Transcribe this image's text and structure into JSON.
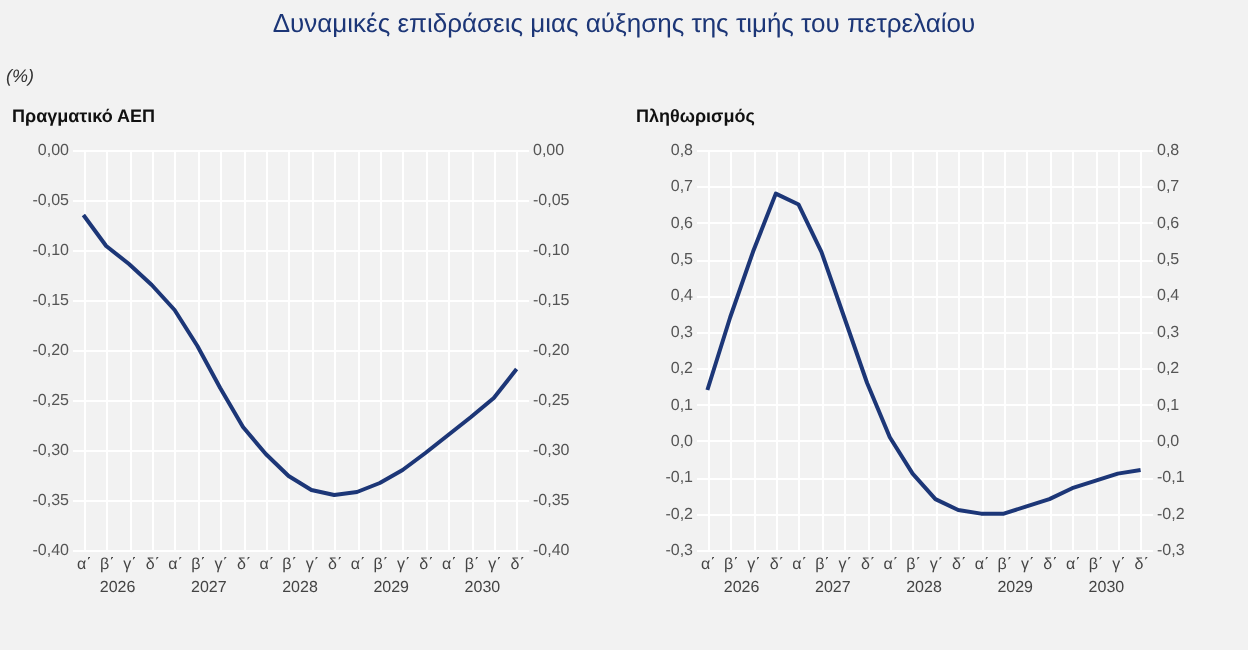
{
  "chart_data": [
    {
      "type": "line",
      "title": "Πραγματικό ΑΕΠ",
      "ylabel": "(%)",
      "annotations": [
        "Δυναμικές επιδράσεις μιας αύξησης της τιμής του πετρελαίου",
        "2026",
        "2027",
        "2028",
        "2029",
        "2030"
      ],
      "categories": [
        "α΄",
        "β΄",
        "γ΄",
        "δ΄",
        "α΄",
        "β΄",
        "γ΄",
        "δ΄",
        "α΄",
        "β΄",
        "γ΄",
        "δ΄",
        "α΄",
        "β΄",
        "γ΄",
        "δ΄",
        "α΄",
        "β΄",
        "γ΄",
        "δ΄"
      ],
      "series": [
        {
          "color": "#1c3677",
          "values": [
            -0.065,
            -0.096,
            -0.114,
            -0.135,
            -0.16,
            -0.196,
            -0.238,
            -0.277,
            -0.304,
            -0.326,
            -0.34,
            -0.345,
            -0.342,
            -0.333,
            -0.32,
            -0.303,
            -0.285,
            -0.267,
            -0.248,
            -0.219
          ]
        }
      ],
      "ylim": [
        -0.4,
        0
      ],
      "yticks": [
        {
          "value": -0.4,
          "label": "-0,40"
        },
        {
          "value": -0.35,
          "label": "-0,35"
        },
        {
          "value": -0.3,
          "label": "-0,30"
        },
        {
          "value": -0.25,
          "label": "-0,25"
        },
        {
          "value": -0.2,
          "label": "-0,20"
        },
        {
          "value": -0.15,
          "label": "-0,15"
        },
        {
          "value": -0.1,
          "label": "-0,10"
        },
        {
          "value": -0.05,
          "label": "-0,05"
        },
        {
          "value": 0,
          "label": "0,00"
        }
      ],
      "y2lim": [
        -0.4,
        0
      ],
      "y2ticks": [
        {
          "value": -0.4,
          "label": "-0,40"
        },
        {
          "value": -0.35,
          "label": "-0,35"
        },
        {
          "value": -0.3,
          "label": "-0,30"
        },
        {
          "value": -0.25,
          "label": "-0,25"
        },
        {
          "value": -0.2,
          "label": "-0,20"
        },
        {
          "value": -0.15,
          "label": "-0,15"
        },
        {
          "value": -0.1,
          "label": "-0,10"
        },
        {
          "value": -0.05,
          "label": "-0,05"
        },
        {
          "value": 0,
          "label": "0,00"
        }
      ],
      "grid": true,
      "legend": false,
      "marker": "none",
      "line_style": "solid"
    },
    {
      "type": "line",
      "title": "Πληθωρισμός",
      "annotations": [
        "2026",
        "2027",
        "2028",
        "2029",
        "2030"
      ],
      "categories": [
        "α΄",
        "β΄",
        "γ΄",
        "δ΄",
        "α΄",
        "β΄",
        "γ΄",
        "δ΄",
        "α΄",
        "β΄",
        "γ΄",
        "δ΄",
        "α΄",
        "β΄",
        "γ΄",
        "δ΄",
        "α΄",
        "β΄",
        "γ΄",
        "δ΄"
      ],
      "series": [
        {
          "color": "#1c3677",
          "values": [
            0.14,
            0.34,
            0.52,
            0.68,
            0.65,
            0.52,
            0.34,
            0.16,
            0.01,
            -0.09,
            -0.16,
            -0.19,
            -0.2,
            -0.2,
            -0.18,
            -0.16,
            -0.13,
            -0.11,
            -0.09,
            -0.08
          ]
        }
      ],
      "ylim": [
        -0.3,
        0.8
      ],
      "yticks": [
        {
          "value": -0.3,
          "label": "-0,3"
        },
        {
          "value": -0.2,
          "label": "-0,2"
        },
        {
          "value": -0.1,
          "label": "-0,1"
        },
        {
          "value": 0,
          "label": "0,0"
        },
        {
          "value": 0.1,
          "label": "0,1"
        },
        {
          "value": 0.2,
          "label": "0,2"
        },
        {
          "value": 0.3,
          "label": "0,3"
        },
        {
          "value": 0.4,
          "label": "0,4"
        },
        {
          "value": 0.5,
          "label": "0,5"
        },
        {
          "value": 0.6,
          "label": "0,6"
        },
        {
          "value": 0.7,
          "label": "0,7"
        },
        {
          "value": 0.8,
          "label": "0,8"
        }
      ],
      "y2lim": [
        -0.3,
        0.8
      ],
      "y2ticks": [
        {
          "value": -0.3,
          "label": "-0,3"
        },
        {
          "value": -0.2,
          "label": "-0,2"
        },
        {
          "value": -0.1,
          "label": "-0,1"
        },
        {
          "value": 0,
          "label": "0,0"
        },
        {
          "value": 0.1,
          "label": "0,1"
        },
        {
          "value": 0.2,
          "label": "0,2"
        },
        {
          "value": 0.3,
          "label": "0,3"
        },
        {
          "value": 0.4,
          "label": "0,4"
        },
        {
          "value": 0.5,
          "label": "0,5"
        },
        {
          "value": 0.6,
          "label": "0,6"
        },
        {
          "value": 0.7,
          "label": "0,7"
        },
        {
          "value": 0.8,
          "label": "0,8"
        }
      ],
      "grid": true,
      "legend": false,
      "marker": "none",
      "line_style": "solid"
    }
  ]
}
